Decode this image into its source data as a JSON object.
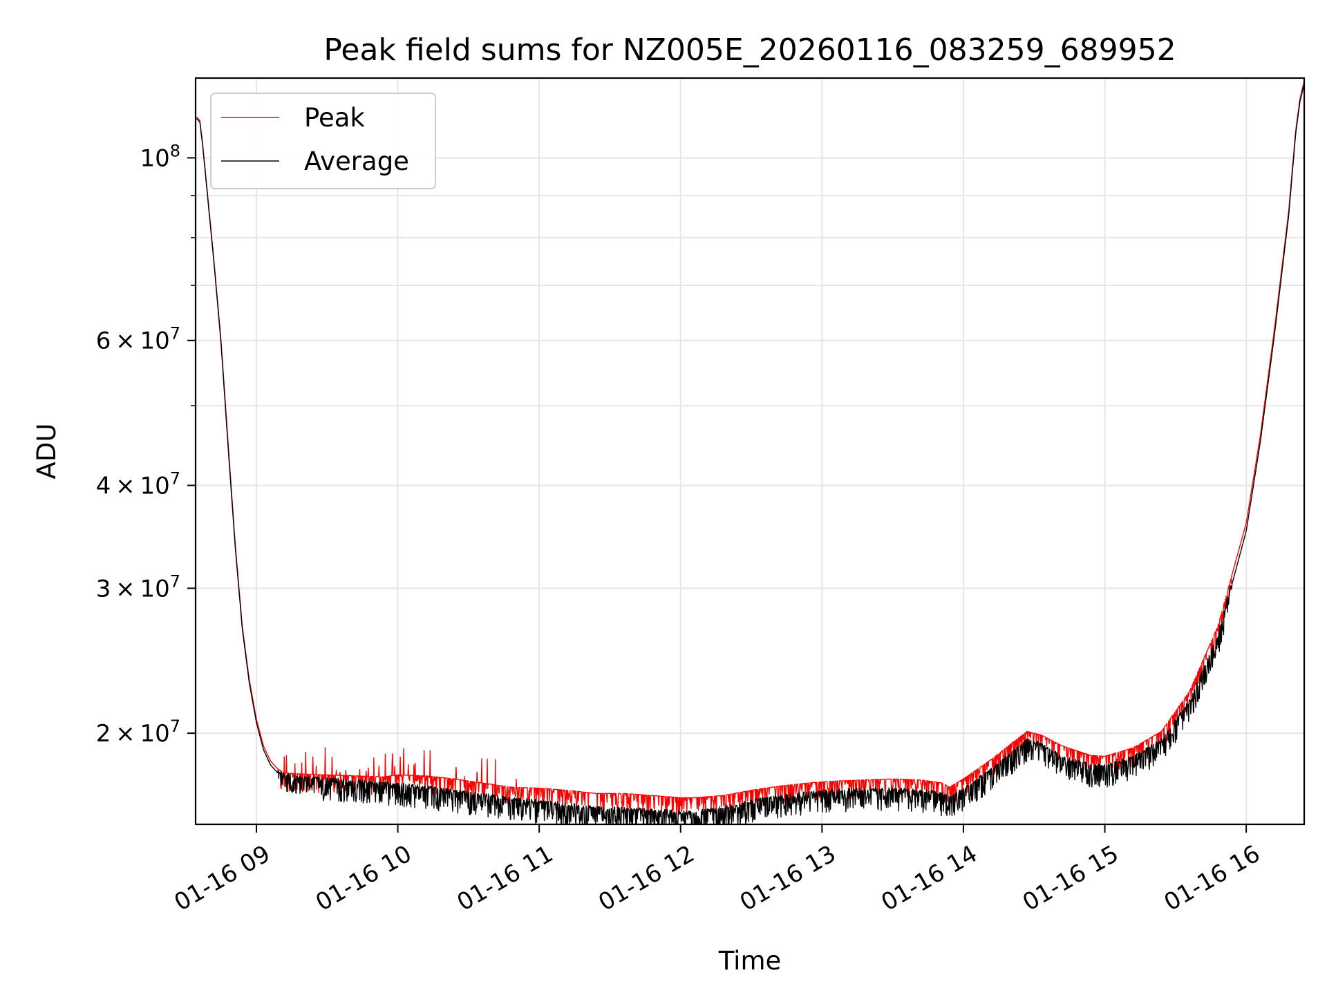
{
  "chart_data": {
    "type": "line",
    "title": "Peak field sums for NZ005E_20260116_083259_689952",
    "xlabel": "Time",
    "ylabel": "ADU",
    "yscale": "log",
    "xlim": [
      8.57,
      16.41
    ],
    "ylim": [
      15500000,
      125000000
    ],
    "grid": true,
    "x_ticks": [
      {
        "value": 9,
        "label": "01-16 09"
      },
      {
        "value": 10,
        "label": "01-16 10"
      },
      {
        "value": 11,
        "label": "01-16 11"
      },
      {
        "value": 12,
        "label": "01-16 12"
      },
      {
        "value": 13,
        "label": "01-16 13"
      },
      {
        "value": 14,
        "label": "01-16 14"
      },
      {
        "value": 15,
        "label": "01-16 15"
      },
      {
        "value": 16,
        "label": "01-16 16"
      }
    ],
    "y_major_ticks": [
      {
        "value": 20000000,
        "mantissa": "2",
        "exp": "7"
      },
      {
        "value": 30000000,
        "mantissa": "3",
        "exp": "7"
      },
      {
        "value": 40000000,
        "mantissa": "4",
        "exp": "7"
      },
      {
        "value": 60000000,
        "mantissa": "6",
        "exp": "7"
      },
      {
        "value": 100000000,
        "mantissa": "",
        "exp": "8"
      }
    ],
    "y_minor_ticks": [
      50000000,
      70000000,
      80000000,
      90000000
    ],
    "legend": {
      "position": "top-left",
      "entries": [
        {
          "label": "Peak",
          "color": "#ff0000"
        },
        {
          "label": "Average",
          "color": "#000000"
        }
      ]
    },
    "series": [
      {
        "name": "Peak",
        "color": "#ff0000",
        "x": [
          8.57,
          8.58,
          8.6,
          8.62,
          8.65,
          8.7,
          8.75,
          8.8,
          8.85,
          8.9,
          8.95,
          9.0,
          9.05,
          9.1,
          9.15,
          9.2,
          9.3,
          9.5,
          9.7,
          9.9,
          10.0,
          10.2,
          10.4,
          10.6,
          10.8,
          11.0,
          11.2,
          11.4,
          11.6,
          11.8,
          12.0,
          12.1,
          12.3,
          12.5,
          12.7,
          12.9,
          13.1,
          13.3,
          13.5,
          13.7,
          13.85,
          13.9,
          14.0,
          14.2,
          14.35,
          14.45,
          14.55,
          14.7,
          14.9,
          15.0,
          15.2,
          15.4,
          15.6,
          15.8,
          16.0,
          16.1,
          16.2,
          16.3,
          16.35,
          16.38,
          16.41
        ],
        "y": [
          112000000,
          112000000,
          111000000,
          104000000,
          92000000,
          75000000,
          60000000,
          45000000,
          34000000,
          27000000,
          23200000,
          20800000,
          19300000,
          18500000,
          18100000,
          17900000,
          17850000,
          17800000,
          17750000,
          17700000,
          17800000,
          17750000,
          17600000,
          17400000,
          17200000,
          17150000,
          17050000,
          16900000,
          16900000,
          16800000,
          16700000,
          16700000,
          16800000,
          17050000,
          17250000,
          17400000,
          17500000,
          17550000,
          17600000,
          17550000,
          17400000,
          17200000,
          17600000,
          18600000,
          19500000,
          20100000,
          19900000,
          19300000,
          18800000,
          18750000,
          19200000,
          20100000,
          22500000,
          27000000,
          36000000,
          46000000,
          62000000,
          86000000,
          108000000,
          118000000,
          124000000
        ]
      },
      {
        "name": "Average",
        "color": "#000000",
        "x": [
          8.57,
          8.58,
          8.6,
          8.62,
          8.65,
          8.7,
          8.75,
          8.8,
          8.85,
          8.9,
          8.95,
          9.0,
          9.05,
          9.1,
          9.15,
          9.2,
          9.3,
          9.5,
          9.7,
          9.9,
          10.0,
          10.2,
          10.4,
          10.6,
          10.8,
          11.0,
          11.2,
          11.4,
          11.6,
          11.8,
          12.0,
          12.1,
          12.3,
          12.5,
          12.7,
          12.9,
          13.1,
          13.3,
          13.5,
          13.7,
          13.85,
          13.9,
          14.0,
          14.2,
          14.35,
          14.45,
          14.55,
          14.7,
          14.9,
          15.0,
          15.2,
          15.4,
          15.6,
          15.8,
          16.0,
          16.1,
          16.2,
          16.3,
          16.35,
          16.38,
          16.41
        ],
        "y": [
          111500000,
          111500000,
          110500000,
          103500000,
          91500000,
          74500000,
          59500000,
          44500000,
          33700000,
          26800000,
          23000000,
          20600000,
          19100000,
          18300000,
          17900000,
          17700000,
          17600000,
          17500000,
          17400000,
          17300000,
          17250000,
          17100000,
          16950000,
          16750000,
          16550000,
          16450000,
          16300000,
          16150000,
          16100000,
          16050000,
          15950000,
          15950000,
          16150000,
          16450000,
          16700000,
          16850000,
          16950000,
          17000000,
          17000000,
          16950000,
          16800000,
          16650000,
          17000000,
          18000000,
          18900000,
          19500000,
          19300000,
          18600000,
          18200000,
          18150000,
          18600000,
          19500000,
          21800000,
          26200000,
          35200000,
          45200000,
          61000000,
          85000000,
          107000000,
          117000000,
          123000000
        ]
      }
    ]
  }
}
